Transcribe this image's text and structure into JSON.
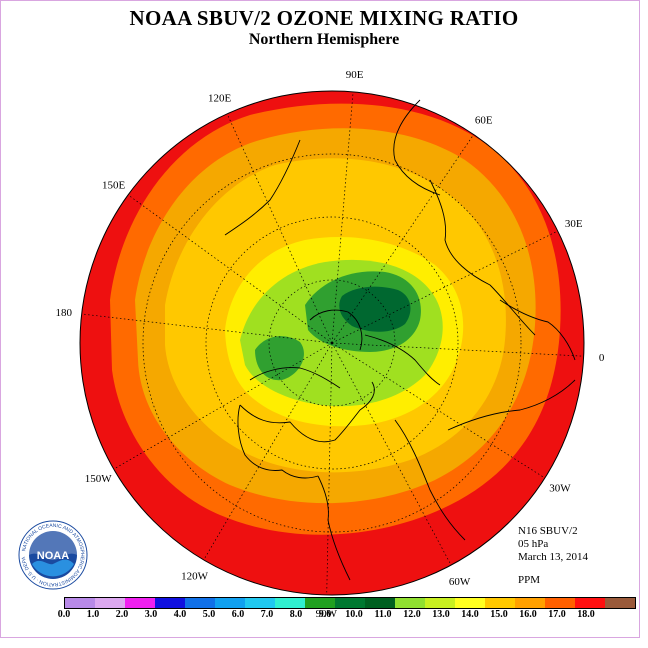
{
  "header": {
    "title": "NOAA SBUV/2 OZONE MIXING RATIO",
    "subtitle": "Northern Hemisphere"
  },
  "map": {
    "projection": "polar-stereographic",
    "hemisphere": "north",
    "longitude_labels": [
      "90E",
      "60E",
      "30E",
      "0",
      "30W",
      "60W",
      "90W",
      "120W",
      "150W",
      "180",
      "150E",
      "120E"
    ],
    "color_zones": [
      {
        "name": "outer",
        "color": "#ee1010"
      },
      {
        "name": "band-16",
        "color": "#ff6a00"
      },
      {
        "name": "band-14",
        "color": "#f5a800"
      },
      {
        "name": "band-13",
        "color": "#ffc800"
      },
      {
        "name": "band-12",
        "color": "#ffee00"
      },
      {
        "name": "band-11",
        "color": "#a0e020"
      },
      {
        "name": "band-10",
        "color": "#30a030"
      },
      {
        "name": "band-9",
        "color": "#006830"
      }
    ]
  },
  "info": {
    "satellite": "N16 SBUV/2",
    "pressure": "05 hPa",
    "date": "March 13, 2014",
    "units": "PPM"
  },
  "logo": {
    "text": "NOAA",
    "ring_text": "NATIONAL OCEANIC AND ATMOSPHERIC ADMINISTRATION · U.S. DEPARTMENT OF COMMERCE"
  },
  "legend": {
    "ticks": [
      "0.0",
      "1.0",
      "2.0",
      "3.0",
      "4.0",
      "5.0",
      "6.0",
      "7.0",
      "8.0",
      "9.0",
      "10.0",
      "11.0",
      "12.0",
      "13.0",
      "14.0",
      "15.0",
      "16.0",
      "17.0",
      "18.0"
    ],
    "colors": [
      "#b88ae8",
      "#dca8f0",
      "#f020f0",
      "#1010e0",
      "#1070e8",
      "#10a0f0",
      "#20c8f0",
      "#30f0d0",
      "#20a020",
      "#007830",
      "#006020",
      "#90e030",
      "#c8f020",
      "#ffff20",
      "#ffc800",
      "#ffa000",
      "#ff6000",
      "#ff1010",
      "#9a5a3a"
    ]
  }
}
